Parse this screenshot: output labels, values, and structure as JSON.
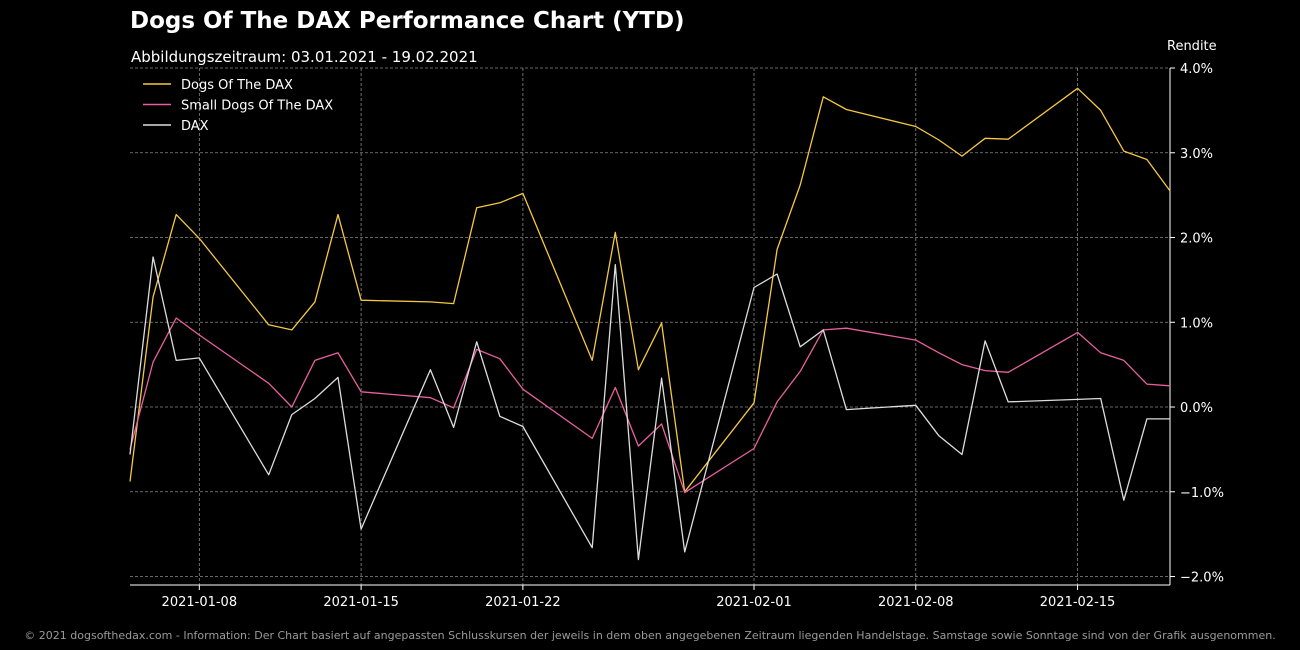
{
  "chart_data": {
    "type": "line",
    "title": "Dogs Of The DAX Performance Chart (YTD)",
    "subtitle": "Abbildungszeitraum: 03.01.2021 - 19.02.2021",
    "ylabel": "Rendite",
    "xlabel": "",
    "xlim": [
      "2021-01-05",
      "2021-02-19"
    ],
    "ylim": [
      -2.1,
      4.0
    ],
    "x_ticks": [
      "2021-01-08",
      "2021-01-15",
      "2021-01-22",
      "2021-02-01",
      "2021-02-08",
      "2021-02-15"
    ],
    "y_ticks": [
      4.0,
      3.0,
      2.0,
      1.0,
      0.0,
      -1.0,
      -2.0
    ],
    "y_tick_labels": [
      "4.0%",
      "3.0%",
      "2.0%",
      "1.0%",
      "0.0%",
      "−1.0%",
      "−2.0%"
    ],
    "grid": true,
    "legend_position": "top-left",
    "y_axis_side": "right",
    "x": [
      "2021-01-05",
      "2021-01-06",
      "2021-01-07",
      "2021-01-08",
      "2021-01-11",
      "2021-01-12",
      "2021-01-13",
      "2021-01-14",
      "2021-01-15",
      "2021-01-18",
      "2021-01-19",
      "2021-01-20",
      "2021-01-21",
      "2021-01-22",
      "2021-01-25",
      "2021-01-26",
      "2021-01-27",
      "2021-01-28",
      "2021-01-29",
      "2021-02-01",
      "2021-02-02",
      "2021-02-03",
      "2021-02-04",
      "2021-02-05",
      "2021-02-08",
      "2021-02-09",
      "2021-02-10",
      "2021-02-11",
      "2021-02-12",
      "2021-02-15",
      "2021-02-16",
      "2021-02-17",
      "2021-02-18",
      "2021-02-19"
    ],
    "series": [
      {
        "name": "Dogs Of The DAX",
        "color": "#f5c842",
        "values": [
          -0.88,
          1.3,
          2.27,
          1.99,
          0.97,
          0.91,
          1.24,
          2.27,
          1.26,
          1.24,
          1.22,
          2.35,
          2.41,
          2.52,
          0.55,
          2.06,
          0.44,
          0.99,
          -1.0,
          0.05,
          1.86,
          2.62,
          3.66,
          3.51,
          3.31,
          3.15,
          2.96,
          3.17,
          3.16,
          3.76,
          3.5,
          3.02,
          2.92,
          2.55
        ]
      },
      {
        "name": "Small Dogs Of The DAX",
        "color": "#e8609f",
        "values": [
          -0.5,
          0.53,
          1.05,
          0.85,
          0.28,
          0.0,
          0.55,
          0.64,
          0.18,
          0.11,
          -0.01,
          0.68,
          0.57,
          0.21,
          -0.37,
          0.23,
          -0.46,
          -0.2,
          -1.01,
          -0.49,
          0.06,
          0.42,
          0.91,
          0.93,
          0.79,
          0.64,
          0.5,
          0.43,
          0.41,
          0.88,
          0.64,
          0.55,
          0.27,
          0.25
        ]
      },
      {
        "name": "DAX",
        "color": "#dddddd",
        "values": [
          -0.56,
          1.77,
          0.55,
          0.58,
          -0.8,
          -0.09,
          0.1,
          0.35,
          -1.44,
          0.44,
          -0.24,
          0.77,
          -0.11,
          -0.23,
          -1.66,
          1.68,
          -1.8,
          0.34,
          -1.71,
          1.41,
          1.57,
          0.71,
          0.91,
          -0.03,
          0.02,
          -0.34,
          -0.56,
          0.78,
          0.06,
          0.09,
          0.1,
          -1.1,
          -0.14,
          -0.14
        ]
      }
    ]
  },
  "footer": "© 2021 dogsofthedax.com - Information: Der Chart basiert auf angepassten Schlusskursen der jeweils in dem oben angegebenen Zeitraum liegenden Handelstage. Samstage sowie Sonntage sind von der Grafik ausgenommen."
}
